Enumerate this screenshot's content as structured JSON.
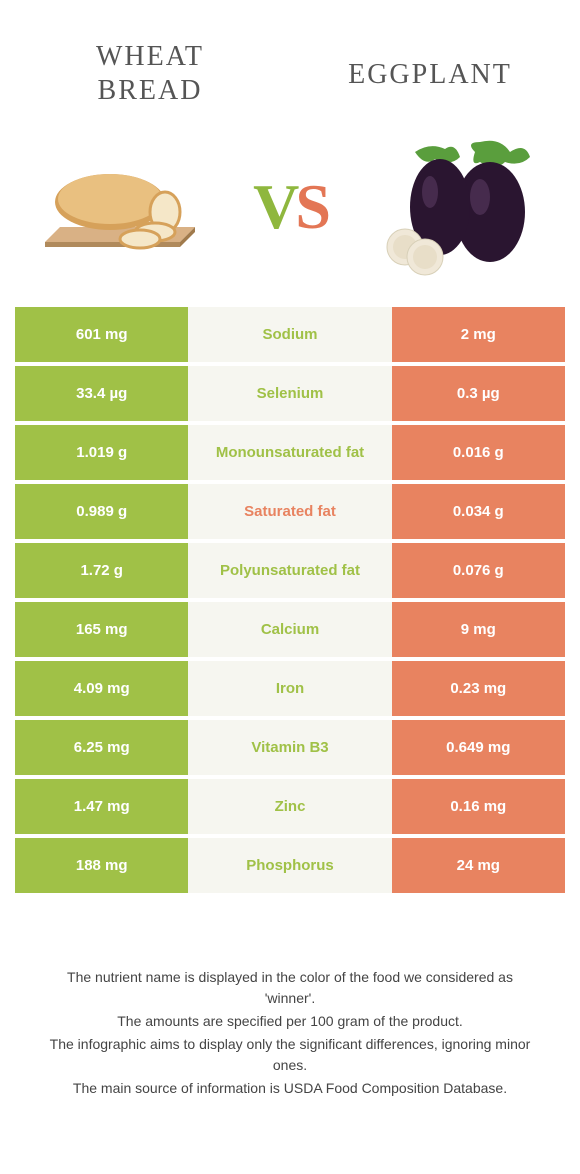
{
  "colors": {
    "green": "#a0c147",
    "orange": "#e88360",
    "mid_bg": "#f6f6f0",
    "white": "#ffffff"
  },
  "left_food": {
    "title": "Wheat Bread"
  },
  "right_food": {
    "title": "Eggplant"
  },
  "vs": {
    "v": "V",
    "s": "S"
  },
  "rows": [
    {
      "left_val": "601 mg",
      "nutrient": "Sodium",
      "right_val": "2 mg",
      "left_bg": "green",
      "right_bg": "orange",
      "winner": "green"
    },
    {
      "left_val": "33.4 µg",
      "nutrient": "Selenium",
      "right_val": "0.3 µg",
      "left_bg": "green",
      "right_bg": "orange",
      "winner": "green"
    },
    {
      "left_val": "1.019 g",
      "nutrient": "Monounsaturated fat",
      "right_val": "0.016 g",
      "left_bg": "green",
      "right_bg": "orange",
      "winner": "green"
    },
    {
      "left_val": "0.989 g",
      "nutrient": "Saturated fat",
      "right_val": "0.034 g",
      "left_bg": "green",
      "right_bg": "orange",
      "winner": "orange"
    },
    {
      "left_val": "1.72 g",
      "nutrient": "Polyunsaturated fat",
      "right_val": "0.076 g",
      "left_bg": "green",
      "right_bg": "orange",
      "winner": "green"
    },
    {
      "left_val": "165 mg",
      "nutrient": "Calcium",
      "right_val": "9 mg",
      "left_bg": "green",
      "right_bg": "orange",
      "winner": "green"
    },
    {
      "left_val": "4.09 mg",
      "nutrient": "Iron",
      "right_val": "0.23 mg",
      "left_bg": "green",
      "right_bg": "orange",
      "winner": "green"
    },
    {
      "left_val": "6.25 mg",
      "nutrient": "Vitamin B3",
      "right_val": "0.649 mg",
      "left_bg": "green",
      "right_bg": "orange",
      "winner": "green"
    },
    {
      "left_val": "1.47 mg",
      "nutrient": "Zinc",
      "right_val": "0.16 mg",
      "left_bg": "green",
      "right_bg": "orange",
      "winner": "green"
    },
    {
      "left_val": "188 mg",
      "nutrient": "Phosphorus",
      "right_val": "24 mg",
      "left_bg": "green",
      "right_bg": "orange",
      "winner": "green"
    }
  ],
  "disclaimer": {
    "line1": "The nutrient name is displayed in the color of the food we considered as 'winner'.",
    "line2": "The amounts are specified per 100 gram of the product.",
    "line3": "The infographic aims to display only the significant differences, ignoring minor ones.",
    "line4": "The main source of information is USDA Food Composition Database."
  }
}
